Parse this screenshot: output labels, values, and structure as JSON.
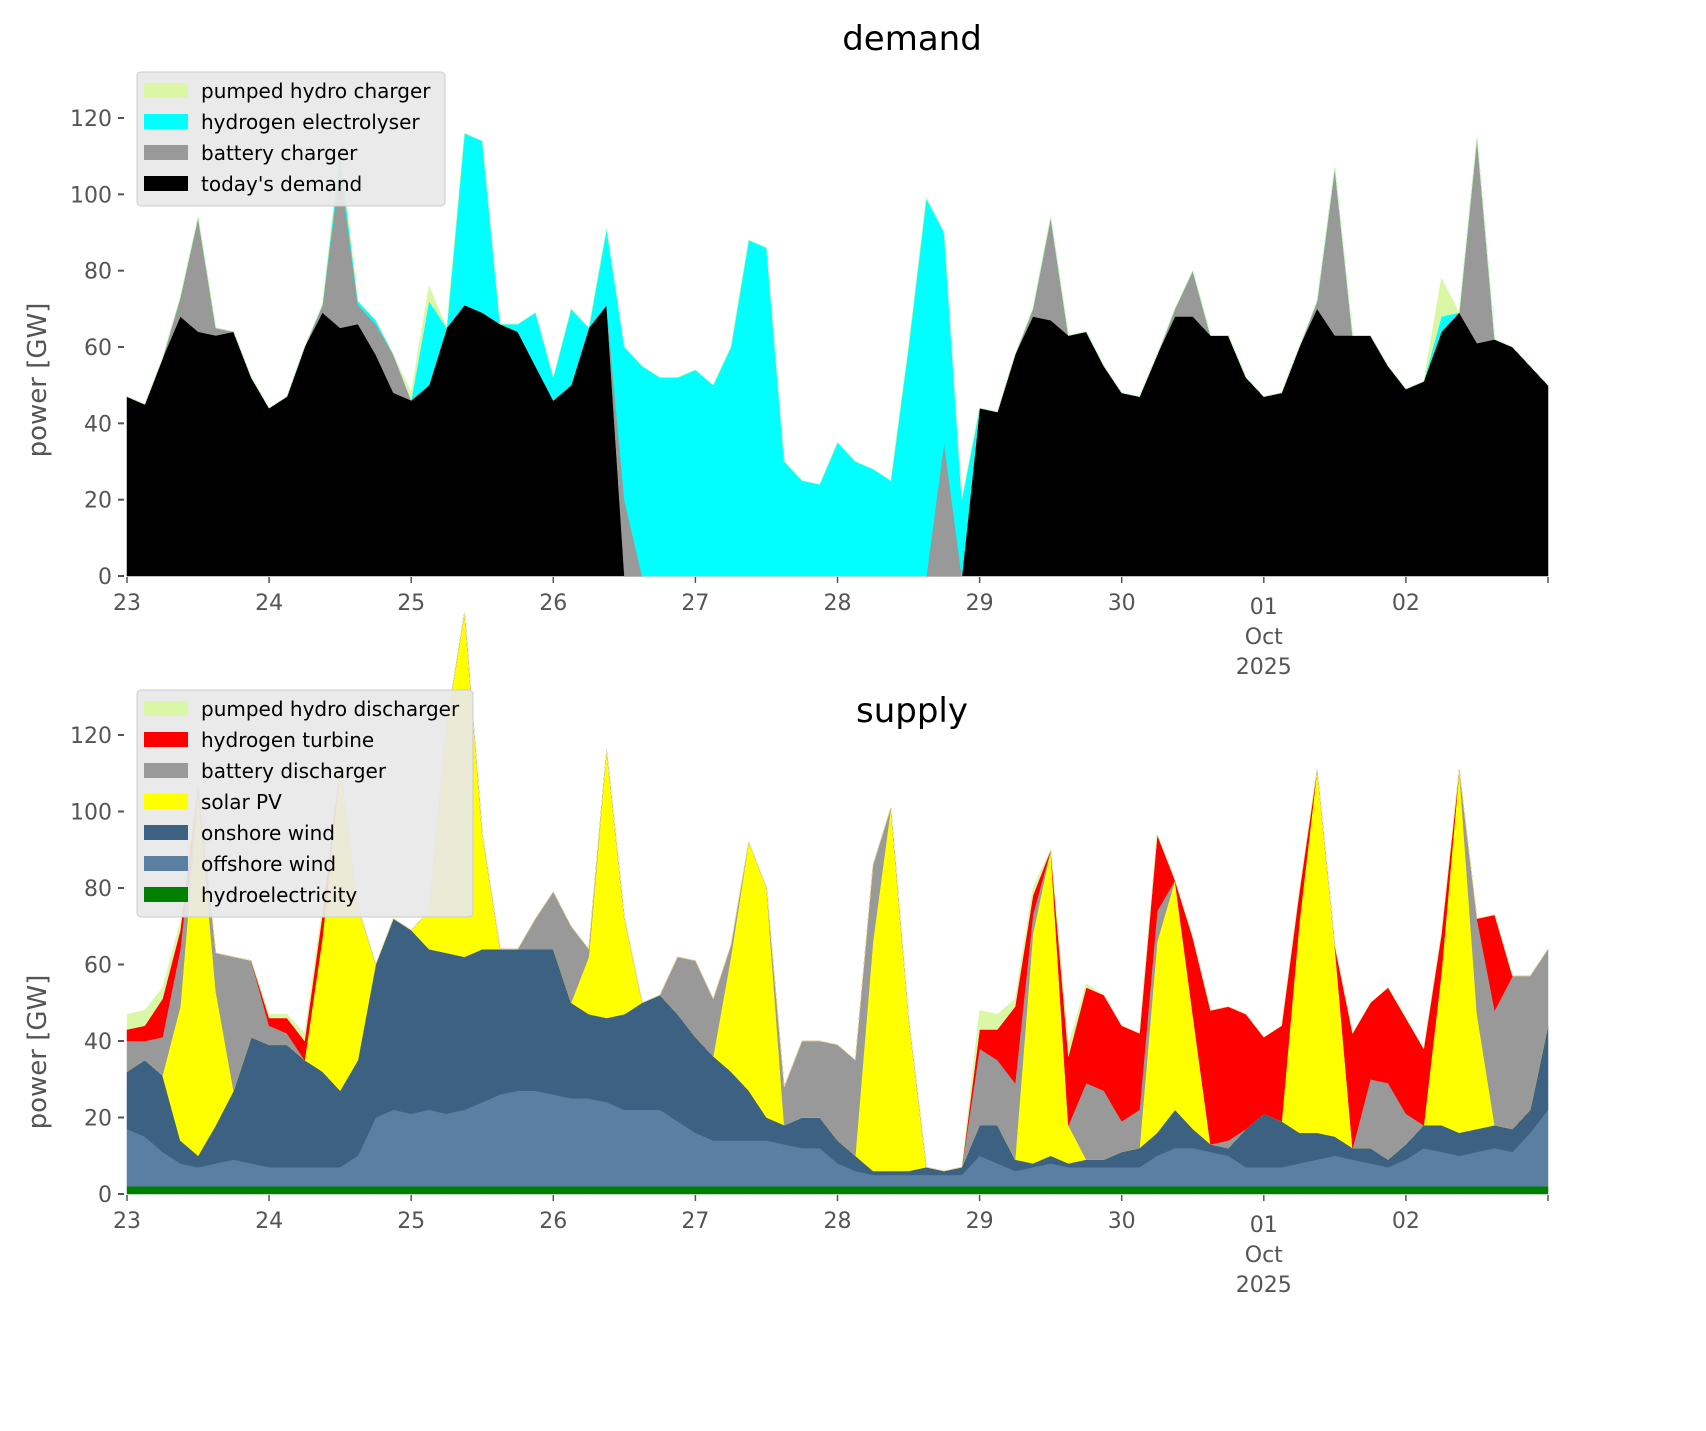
{
  "chart_data": [
    {
      "type": "area",
      "stacked": true,
      "title": "demand",
      "xlabel": "",
      "ylabel": "power [GW]",
      "ylim": [
        0,
        130
      ],
      "yticks": [
        0,
        20,
        40,
        60,
        80,
        100,
        120
      ],
      "xticks": [
        "23",
        "24",
        "25",
        "26",
        "27",
        "28",
        "29",
        "30",
        "01",
        "02"
      ],
      "xtick_sublabel": {
        "tick": "01",
        "lines": [
          "Oct",
          "2025"
        ]
      },
      "x_unit": "days from 23 Sep 2025, 3-hourly",
      "grid": false,
      "legend_position": "top-left",
      "legend": [
        "pumped hydro charger",
        "hydrogen electrolyser",
        "battery charger",
        "today's demand"
      ],
      "series": [
        {
          "name": "today's demand",
          "color": "#000000",
          "values": [
            47,
            45,
            57,
            68,
            64,
            63,
            64,
            52,
            44,
            47,
            60,
            69,
            65,
            66,
            58,
            48,
            46,
            50,
            65,
            71,
            69,
            66,
            64,
            55,
            46,
            50,
            65,
            71,
            0,
            0,
            0,
            0,
            0,
            0,
            0,
            0,
            0,
            0,
            0,
            0,
            0,
            0,
            0,
            0,
            0,
            0,
            0,
            0,
            44,
            43,
            58,
            68,
            67,
            63,
            64,
            55,
            48,
            47,
            58,
            68,
            68,
            63,
            63,
            52,
            47,
            48,
            60,
            70,
            63,
            63,
            63,
            55,
            49,
            51,
            64,
            69,
            61,
            62,
            60,
            55,
            50
          ]
        },
        {
          "name": "battery charger",
          "color": "#999999",
          "values": [
            0,
            0,
            0,
            5,
            30,
            2,
            0,
            0,
            0,
            0,
            0,
            2,
            42,
            5,
            8,
            10,
            0,
            0,
            0,
            0,
            0,
            0,
            0,
            0,
            0,
            0,
            0,
            0,
            20,
            0,
            0,
            0,
            0,
            0,
            0,
            0,
            0,
            0,
            0,
            0,
            0,
            0,
            0,
            0,
            0,
            0,
            35,
            0,
            0,
            0,
            0,
            2,
            27,
            0,
            0,
            0,
            0,
            0,
            0,
            2,
            12,
            0,
            0,
            0,
            0,
            0,
            0,
            2,
            44,
            0,
            0,
            0,
            0,
            0,
            0,
            0,
            54,
            0,
            0,
            0,
            0
          ]
        },
        {
          "name": "hydrogen electrolyser",
          "color": "#00ffff",
          "values": [
            0,
            0,
            0,
            0,
            0,
            0,
            0,
            0,
            0,
            0,
            0,
            0,
            3,
            1,
            1,
            0,
            0,
            22,
            0,
            45,
            45,
            0,
            2,
            14,
            6,
            20,
            0,
            20,
            40,
            55,
            52,
            52,
            54,
            50,
            60,
            88,
            86,
            30,
            25,
            24,
            35,
            30,
            28,
            25,
            60,
            99,
            55,
            20,
            0,
            0,
            0,
            0,
            0,
            0,
            0,
            0,
            0,
            0,
            0,
            0,
            0,
            0,
            0,
            0,
            0,
            0,
            0,
            0,
            0,
            0,
            0,
            0,
            0,
            0,
            4,
            0,
            0,
            0,
            0,
            0,
            0
          ]
        },
        {
          "name": "pumped hydro charger",
          "color": "#daf7a6",
          "values": [
            0,
            0,
            0,
            0,
            0,
            0,
            0,
            0,
            0,
            0,
            0,
            0,
            2,
            0,
            0,
            0,
            2,
            4,
            0,
            0,
            0,
            0,
            0,
            0,
            0,
            0,
            0,
            0,
            0,
            0,
            0,
            0,
            0,
            0,
            0,
            0,
            0,
            0,
            0,
            0,
            0,
            0,
            0,
            0,
            0,
            0,
            0,
            0,
            0,
            0,
            0,
            0,
            0,
            0,
            0,
            0,
            0,
            0,
            0,
            0,
            0,
            0,
            0,
            0,
            0,
            0,
            0,
            0,
            0,
            0,
            0,
            0,
            0,
            0,
            10,
            0,
            0,
            0,
            0,
            0,
            0
          ]
        }
      ]
    },
    {
      "type": "area",
      "stacked": true,
      "title": "supply",
      "xlabel": "",
      "ylabel": "power [GW]",
      "ylim": [
        0,
        130
      ],
      "yticks": [
        0,
        20,
        40,
        60,
        80,
        100,
        120
      ],
      "xticks": [
        "23",
        "24",
        "25",
        "26",
        "27",
        "28",
        "29",
        "30",
        "01",
        "02"
      ],
      "xtick_sublabel": {
        "tick": "01",
        "lines": [
          "Oct",
          "2025"
        ]
      },
      "x_unit": "days from 23 Sep 2025, 3-hourly",
      "grid": false,
      "legend_position": "top-left",
      "legend": [
        "pumped hydro discharger",
        "hydrogen turbine",
        "battery discharger",
        "solar PV",
        "onshore wind",
        "offshore wind",
        "hydroelectricity"
      ],
      "series": [
        {
          "name": "hydroelectricity",
          "color": "#008000",
          "values": [
            2,
            2,
            2,
            2,
            2,
            2,
            2,
            2,
            2,
            2,
            2,
            2,
            2,
            2,
            2,
            2,
            2,
            2,
            2,
            2,
            2,
            2,
            2,
            2,
            2,
            2,
            2,
            2,
            2,
            2,
            2,
            2,
            2,
            2,
            2,
            2,
            2,
            2,
            2,
            2,
            2,
            2,
            2,
            2,
            2,
            2,
            2,
            2,
            2,
            2,
            2,
            2,
            2,
            2,
            2,
            2,
            2,
            2,
            2,
            2,
            2,
            2,
            2,
            2,
            2,
            2,
            2,
            2,
            2,
            2,
            2,
            2,
            2,
            2,
            2,
            2,
            2,
            2,
            2,
            2,
            2
          ]
        },
        {
          "name": "offshore wind",
          "color": "#5b7fa2",
          "values": [
            15,
            13,
            9,
            6,
            5,
            6,
            7,
            6,
            5,
            5,
            5,
            5,
            5,
            8,
            18,
            20,
            19,
            20,
            19,
            20,
            22,
            24,
            25,
            25,
            24,
            23,
            23,
            22,
            20,
            20,
            20,
            17,
            14,
            12,
            12,
            12,
            12,
            11,
            10,
            10,
            6,
            4,
            3,
            3,
            3,
            3,
            3,
            3,
            8,
            6,
            4,
            5,
            6,
            5,
            5,
            5,
            5,
            5,
            8,
            10,
            10,
            9,
            8,
            5,
            5,
            5,
            6,
            7,
            8,
            7,
            6,
            5,
            7,
            10,
            9,
            8,
            9,
            10,
            9,
            14,
            20
          ]
        },
        {
          "name": "onshore wind",
          "color": "#3c6182",
          "values": [
            15,
            20,
            20,
            6,
            3,
            10,
            18,
            33,
            32,
            32,
            28,
            25,
            20,
            25,
            40,
            50,
            48,
            42,
            42,
            40,
            40,
            38,
            37,
            37,
            38,
            25,
            22,
            22,
            25,
            28,
            30,
            28,
            25,
            22,
            18,
            13,
            6,
            5,
            8,
            8,
            6,
            4,
            1,
            1,
            1,
            2,
            1,
            2,
            8,
            10,
            3,
            1,
            2,
            1,
            2,
            2,
            4,
            5,
            6,
            10,
            5,
            2,
            2,
            10,
            14,
            12,
            8,
            7,
            5,
            3,
            4,
            2,
            4,
            6,
            7,
            6,
            6,
            6,
            6,
            6,
            22
          ]
        },
        {
          "name": "solar PV",
          "color": "#ffff00",
          "values": [
            0,
            0,
            0,
            35,
            95,
            35,
            0,
            0,
            0,
            0,
            0,
            35,
            85,
            40,
            0,
            0,
            0,
            10,
            60,
            90,
            30,
            0,
            0,
            0,
            0,
            0,
            15,
            70,
            25,
            0,
            0,
            0,
            0,
            0,
            30,
            65,
            60,
            0,
            0,
            0,
            0,
            0,
            60,
            95,
            40,
            0,
            0,
            0,
            0,
            0,
            0,
            60,
            80,
            10,
            0,
            0,
            0,
            0,
            50,
            60,
            30,
            0,
            0,
            0,
            0,
            0,
            55,
            95,
            50,
            0,
            0,
            0,
            0,
            0,
            40,
            95,
            30,
            0,
            0,
            0,
            0
          ]
        },
        {
          "name": "battery discharger",
          "color": "#999999",
          "values": [
            8,
            5,
            10,
            15,
            2,
            10,
            35,
            20,
            5,
            3,
            0,
            0,
            0,
            0,
            0,
            0,
            0,
            0,
            0,
            0,
            0,
            0,
            0,
            8,
            15,
            20,
            2,
            0,
            0,
            0,
            0,
            15,
            20,
            15,
            3,
            0,
            0,
            10,
            20,
            20,
            25,
            25,
            20,
            0,
            0,
            0,
            0,
            0,
            20,
            17,
            20,
            5,
            0,
            0,
            20,
            18,
            8,
            10,
            8,
            0,
            0,
            0,
            2,
            0,
            0,
            0,
            0,
            0,
            0,
            0,
            18,
            20,
            8,
            0,
            0,
            0,
            25,
            30,
            40,
            35,
            20
          ]
        },
        {
          "name": "hydrogen turbine",
          "color": "#ff0000",
          "values": [
            3,
            4,
            10,
            5,
            0,
            0,
            0,
            0,
            2,
            4,
            5,
            6,
            0,
            0,
            0,
            0,
            0,
            0,
            0,
            0,
            0,
            0,
            0,
            0,
            0,
            0,
            0,
            0,
            0,
            0,
            0,
            0,
            0,
            0,
            0,
            0,
            0,
            0,
            0,
            0,
            0,
            0,
            0,
            0,
            0,
            0,
            0,
            0,
            5,
            8,
            20,
            5,
            0,
            18,
            25,
            25,
            25,
            20,
            20,
            0,
            20,
            35,
            35,
            30,
            20,
            25,
            8,
            0,
            0,
            30,
            20,
            25,
            25,
            20,
            10,
            0,
            0,
            25,
            0,
            0,
            0
          ]
        },
        {
          "name": "pumped hydro discharger",
          "color": "#daf7a6",
          "values": [
            4,
            4,
            3,
            2,
            0,
            0,
            0,
            0,
            1,
            1,
            2,
            2,
            0,
            0,
            0,
            0,
            0,
            0,
            0,
            0,
            0,
            0,
            0,
            0,
            0,
            0,
            0,
            0,
            0,
            0,
            0,
            0,
            0,
            0,
            0,
            0,
            0,
            0,
            0,
            0,
            0,
            0,
            0,
            0,
            0,
            0,
            0,
            0,
            5,
            4,
            2,
            2,
            0,
            3,
            1,
            0,
            0,
            0,
            0,
            0,
            0,
            0,
            0,
            0,
            0,
            0,
            0,
            0,
            0,
            0,
            0,
            0,
            0,
            0,
            0,
            0,
            0,
            0,
            0,
            0,
            0
          ]
        }
      ]
    }
  ]
}
